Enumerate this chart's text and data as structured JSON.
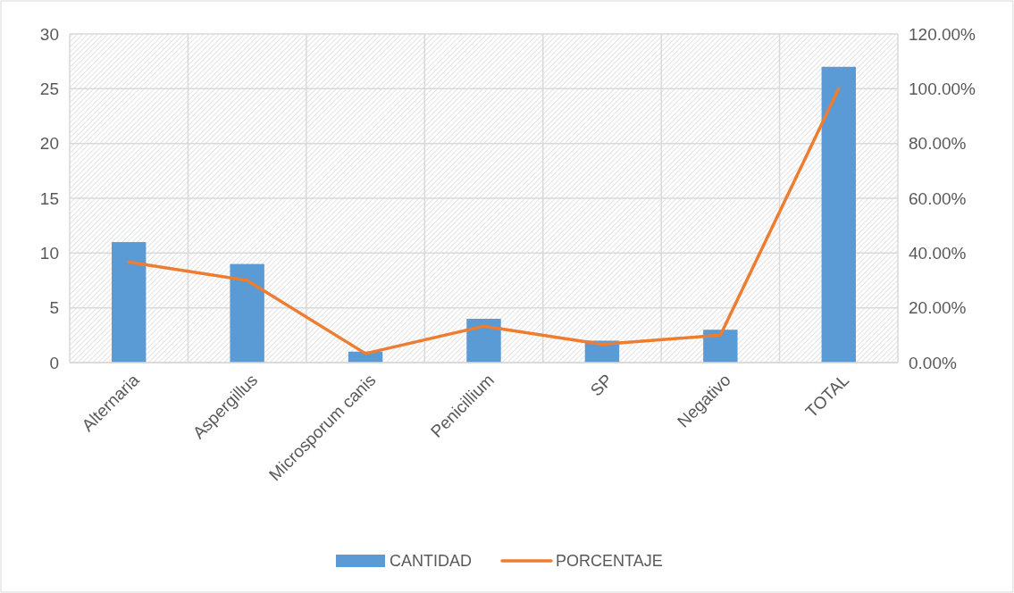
{
  "chart_data": {
    "type": "bar",
    "categories": [
      "Alternaria",
      "Aspergillus",
      "Microsporum canis",
      "Penicillium",
      "SP",
      "Negativo",
      "TOTAL"
    ],
    "series": [
      {
        "name": "CANTIDAD",
        "color": "#5b9bd5",
        "values": [
          11,
          9,
          1,
          4,
          2,
          3,
          27
        ]
      },
      {
        "name": "PORCENTAJE",
        "type": "line",
        "axis": "y2",
        "color": "#ed7d31",
        "values": [
          36.7,
          30,
          3.3,
          13.3,
          6.7,
          10,
          100
        ]
      }
    ],
    "ylim": [
      0,
      30
    ],
    "yticks": [
      0,
      5,
      10,
      15,
      20,
      25,
      30
    ],
    "y2lim": [
      0,
      120
    ],
    "y2ticks": [
      {
        "value": 0,
        "label": "0.00%"
      },
      {
        "value": 20,
        "label": "20.00%"
      },
      {
        "value": 40,
        "label": "40.00%"
      },
      {
        "value": 60,
        "label": "60.00%"
      },
      {
        "value": 80,
        "label": "80.00%"
      },
      {
        "value": 100,
        "label": "100.00%"
      },
      {
        "value": 120,
        "label": "120.00%"
      }
    ],
    "grid": true,
    "legend": "bottom",
    "marker": "none",
    "line_style": "solid"
  }
}
